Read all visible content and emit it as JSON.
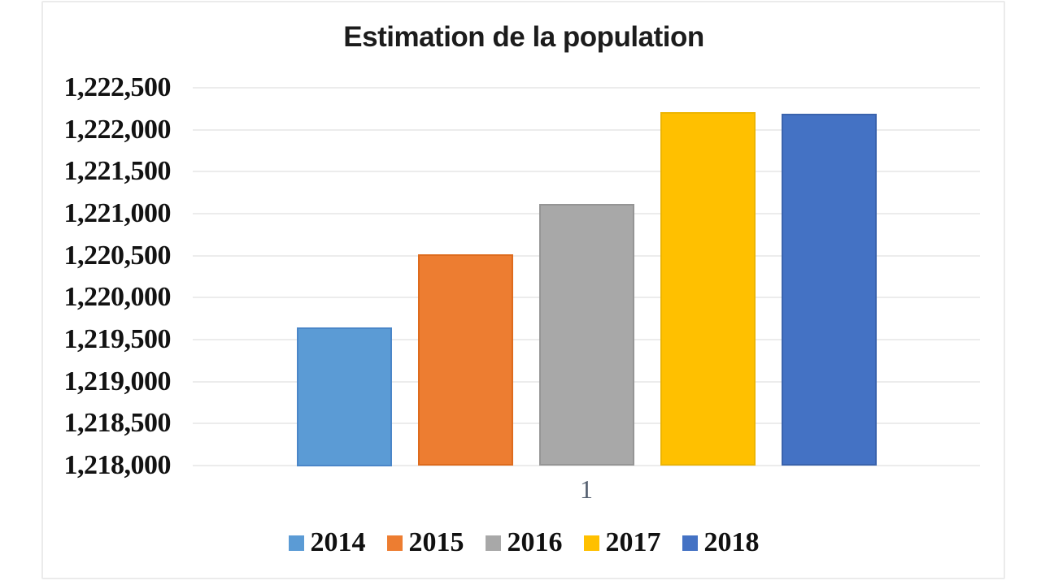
{
  "chart_data": {
    "type": "bar",
    "title": "Estimation de la population",
    "categories": [
      "1"
    ],
    "series": [
      {
        "name": "2014",
        "values": [
          1219650
        ],
        "color": "#5B9BD5",
        "border_color": "#4a86c8"
      },
      {
        "name": "2015",
        "values": [
          1220520
        ],
        "color": "#ED7D31",
        "border_color": "#de6b1d"
      },
      {
        "name": "2016",
        "values": [
          1221120
        ],
        "color": "#A8A8A8",
        "border_color": "#959595"
      },
      {
        "name": "2017",
        "values": [
          1222210
        ],
        "color": "#FFC000",
        "border_color": "#edb503"
      },
      {
        "name": "2018",
        "values": [
          1222190
        ],
        "color": "#4472C4",
        "border_color": "#3a63ad"
      }
    ],
    "ylim": [
      1218000,
      1222500
    ],
    "y_tick_step": 500,
    "y_tick_labels": [
      "1,222,500",
      "1,222,000",
      "1,221,500",
      "1,221,000",
      "1,220,500",
      "1,220,000",
      "1,219,500",
      "1,219,000",
      "1,218,500",
      "1,218,000"
    ],
    "grid": true,
    "legend_position": "bottom",
    "legend_entries": [
      "2014",
      "2015",
      "2016",
      "2017",
      "2018"
    ]
  }
}
